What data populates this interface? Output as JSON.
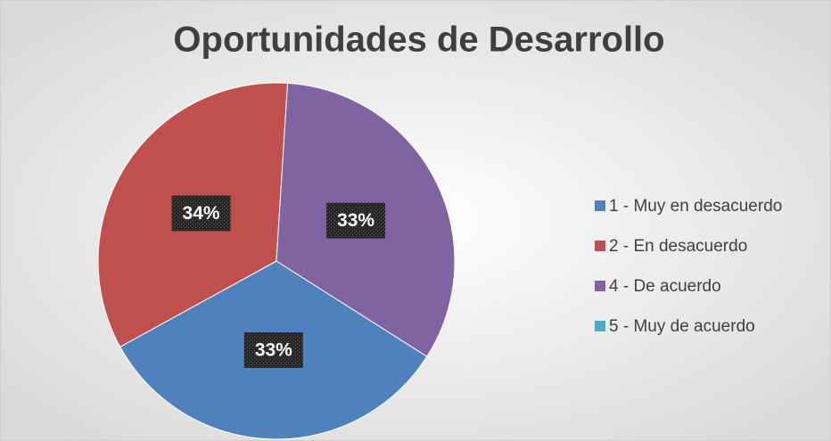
{
  "chart_data": {
    "type": "pie",
    "title": "Oportunidades de Desarrollo",
    "categories": [
      "1 - Muy en desacuerdo",
      "2 - En desacuerdo",
      "4 - De acuerdo",
      "5 - Muy de acuerdo"
    ],
    "values": [
      33,
      34,
      33,
      0
    ],
    "value_labels": [
      "33%",
      "34%",
      "33%",
      null
    ],
    "colors": [
      "#4f81bd",
      "#c0504d",
      "#8064a2",
      "#4bacc6"
    ],
    "legend": "right"
  }
}
